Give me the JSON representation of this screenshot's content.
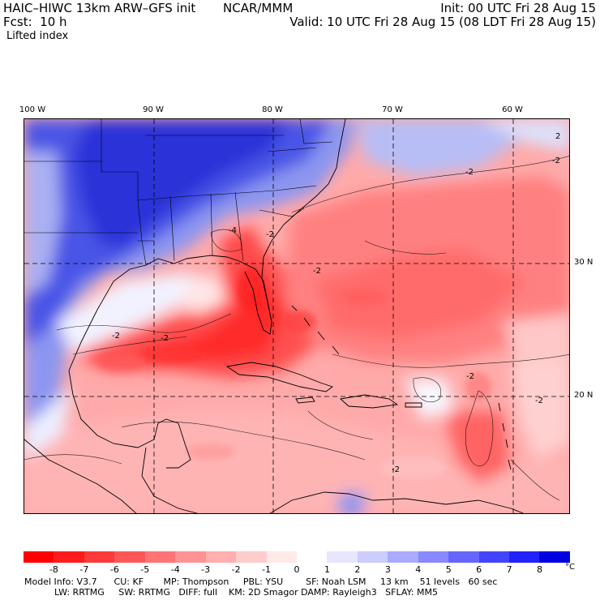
{
  "header": {
    "model": "HAIC–HIWC 13km ARW–GFS init",
    "org": "NCAR/MMM",
    "init": "Init: 00 UTC Fri 28 Aug 15",
    "fcst": "Fcst:  10 h",
    "valid": "Valid: 10 UTC Fri 28 Aug 15 (08 LDT Fri 28 Aug 15)",
    "field": "Lifted index"
  },
  "longitude_labels": [
    "100 W",
    "90 W",
    "80 W",
    "70 W",
    "60 W"
  ],
  "latitude_labels": [
    "30 N",
    "20 N"
  ],
  "contour_labels": [
    "-2",
    "-2",
    "-2",
    "-2",
    "-2",
    "-2",
    "-2",
    "-4",
    "-2",
    "2",
    "-2"
  ],
  "colorbar": {
    "ticks": [
      "-8",
      "-7",
      "-6",
      "-5",
      "-4",
      "-3",
      "-2",
      "-1",
      "0",
      "1",
      "2",
      "3",
      "4",
      "5",
      "6",
      "7",
      "8"
    ],
    "unit": "°C",
    "colors": [
      "#ff0000",
      "#ff1c1c",
      "#ff3a3a",
      "#ff5757",
      "#ff7474",
      "#ff9292",
      "#ffafaf",
      "#ffcccc",
      "#ffe9e9",
      "#ffffff",
      "#e6e6ff",
      "#ccccff",
      "#aaaaff",
      "#8888ff",
      "#6666ff",
      "#4444ff",
      "#2222ff",
      "#0000e0"
    ]
  },
  "model_info": {
    "line1": "Model Info: V3.7      CU: KF       MP: Thompson     PBL: YSU        SF: Noah LSM     13 km    51 levels   60 sec",
    "line2": "LW: RRTMG     SW: RRTMG   DIFF: full    KM: 2D Smagor DAMP: Rayleigh3   SFLAY: MM5"
  }
}
